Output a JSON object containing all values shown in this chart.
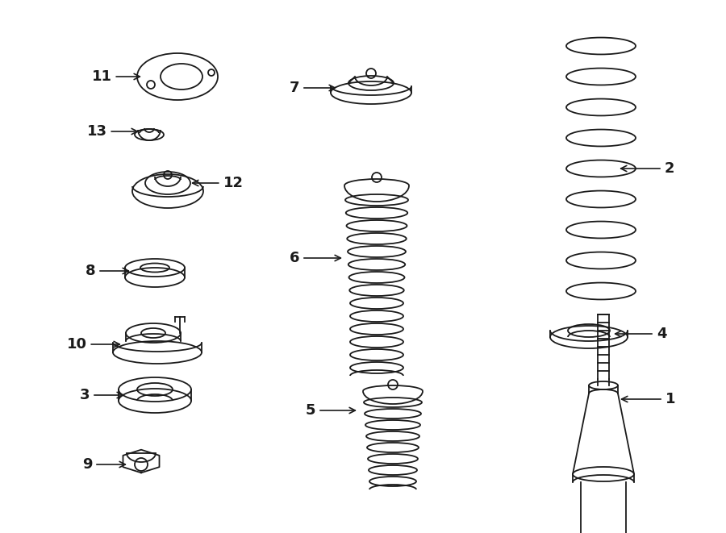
{
  "background_color": "#ffffff",
  "line_color": "#1a1a1a",
  "line_width": 1.3,
  "fig_width": 9.0,
  "fig_height": 6.61,
  "dpi": 100
}
